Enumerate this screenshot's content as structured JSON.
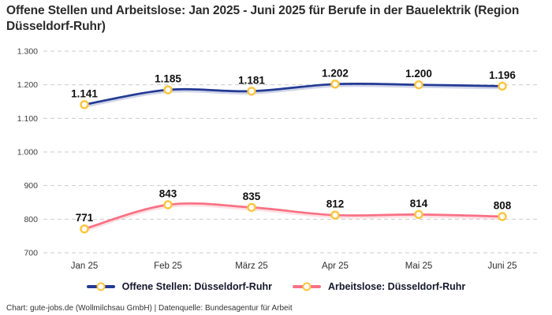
{
  "title": "Offene Stellen und Arbeitslose: Jan 2025 - Juni 2025 für Berufe in der Bauelektrik (Region Düsseldorf-Ruhr)",
  "footer": "Chart: gute-jobs.de (Wollmilchsau GmbH) | Datenquelle: Bundesagentur für Arbeit",
  "chart_data": {
    "type": "line",
    "title": "Offene Stellen und Arbeitslose: Jan 2025 - Juni 2025 für Berufe in der Bauelektrik (Region Düsseldorf-Ruhr)",
    "categories": [
      "Jan 25",
      "Feb 25",
      "März 25",
      "Apr 25",
      "Mai 25",
      "Juni 25"
    ],
    "series": [
      {
        "name": "Offene Stellen: Düsseldorf-Ruhr",
        "color": "#233A94",
        "values": [
          1141,
          1185,
          1181,
          1202,
          1200,
          1196
        ],
        "labels": [
          "1.141",
          "1.185",
          "1.181",
          "1.202",
          "1.200",
          "1.196"
        ]
      },
      {
        "name": "Arbeitslose: Düsseldorf-Ruhr",
        "color": "#F97185",
        "values": [
          771,
          843,
          835,
          812,
          814,
          808
        ],
        "labels": [
          "771",
          "843",
          "835",
          "812",
          "814",
          "808"
        ]
      }
    ],
    "ylim": [
      700,
      1300
    ],
    "yticks": [
      {
        "value": 700,
        "label": "700"
      },
      {
        "value": 800,
        "label": "800"
      },
      {
        "value": 900,
        "label": "900"
      },
      {
        "value": 1000,
        "label": "1.000"
      },
      {
        "value": 1100,
        "label": "1.100"
      },
      {
        "value": 1200,
        "label": "1.200"
      },
      {
        "value": 1300,
        "label": "1.300"
      }
    ],
    "marker": {
      "fill": "#ffffff",
      "stroke": "#FBC53D"
    },
    "grid": "horizontal-dashed",
    "grid_color": "#cbcbcb",
    "legend_position": "bottom"
  }
}
